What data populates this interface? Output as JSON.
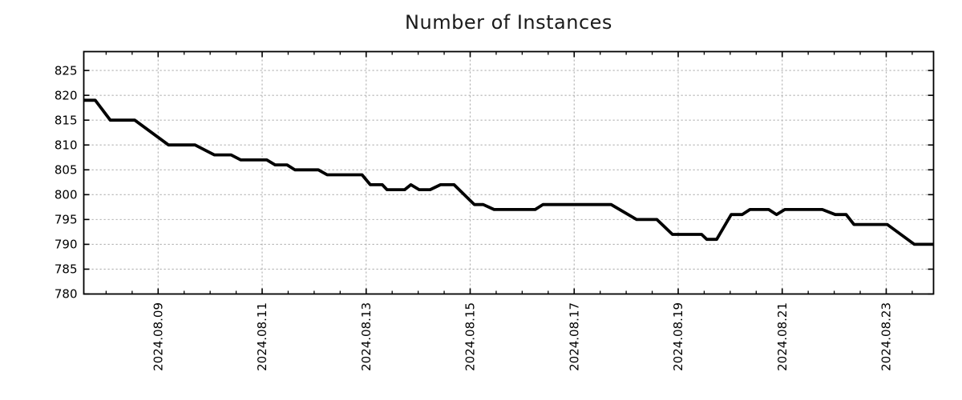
{
  "chart_data": {
    "type": "line",
    "title": "Number of Instances",
    "legend": {
      "show": false
    },
    "grid": {
      "show": true,
      "style": "dashed",
      "color": "#b0b0b0"
    },
    "x_axis": {
      "unit": "days since 2024-08-09 00:00",
      "lim": [
        -1.43,
        14.91
      ],
      "major_ticks": [
        {
          "day": 0,
          "label": "2024.08.09"
        },
        {
          "day": 2,
          "label": "2024.08.11"
        },
        {
          "day": 4,
          "label": "2024.08.13"
        },
        {
          "day": 6,
          "label": "2024.08.15"
        },
        {
          "day": 8,
          "label": "2024.08.17"
        },
        {
          "day": 10,
          "label": "2024.08.19"
        },
        {
          "day": 12,
          "label": "2024.08.21"
        },
        {
          "day": 14,
          "label": "2024.08.23"
        }
      ],
      "minor_tick_interval_days": 0.5,
      "tick_label_rotation_deg": 90
    },
    "y_axis": {
      "lim": [
        780,
        828.8
      ],
      "ticks": [
        780,
        785,
        790,
        795,
        800,
        805,
        810,
        815,
        820,
        825
      ]
    },
    "series": [
      {
        "name": "Number of Instances",
        "color": "#000000",
        "points": [
          [
            -1.43,
            819
          ],
          [
            -1.21,
            819
          ],
          [
            -0.92,
            815
          ],
          [
            -0.45,
            815
          ],
          [
            0.2,
            810
          ],
          [
            0.71,
            810
          ],
          [
            1.08,
            808
          ],
          [
            1.4,
            808
          ],
          [
            1.59,
            807
          ],
          [
            2.09,
            807
          ],
          [
            2.25,
            806
          ],
          [
            2.48,
            806
          ],
          [
            2.63,
            805
          ],
          [
            3.08,
            805
          ],
          [
            3.25,
            804
          ],
          [
            3.92,
            804
          ],
          [
            4.08,
            802
          ],
          [
            4.31,
            802
          ],
          [
            4.4,
            801
          ],
          [
            4.74,
            801
          ],
          [
            4.86,
            802
          ],
          [
            5.02,
            801
          ],
          [
            5.23,
            801
          ],
          [
            5.43,
            802
          ],
          [
            5.69,
            802
          ],
          [
            6.08,
            798
          ],
          [
            6.25,
            798
          ],
          [
            6.46,
            797
          ],
          [
            7.25,
            797
          ],
          [
            7.4,
            798
          ],
          [
            8.71,
            798
          ],
          [
            9.2,
            795
          ],
          [
            9.59,
            795
          ],
          [
            9.89,
            792
          ],
          [
            10.45,
            792
          ],
          [
            10.55,
            791
          ],
          [
            10.74,
            791
          ],
          [
            11.02,
            796
          ],
          [
            11.23,
            796
          ],
          [
            11.38,
            797
          ],
          [
            11.74,
            797
          ],
          [
            11.89,
            796
          ],
          [
            12.05,
            797
          ],
          [
            12.77,
            797
          ],
          [
            13.02,
            796
          ],
          [
            13.23,
            796
          ],
          [
            13.38,
            794
          ],
          [
            14.02,
            794
          ],
          [
            14.54,
            790
          ],
          [
            14.91,
            790
          ]
        ]
      }
    ],
    "colors": {
      "background": "#ffffff",
      "spine": "#000000",
      "text": "#000000",
      "line": "#000000",
      "grid": "#b0b0b0"
    }
  }
}
